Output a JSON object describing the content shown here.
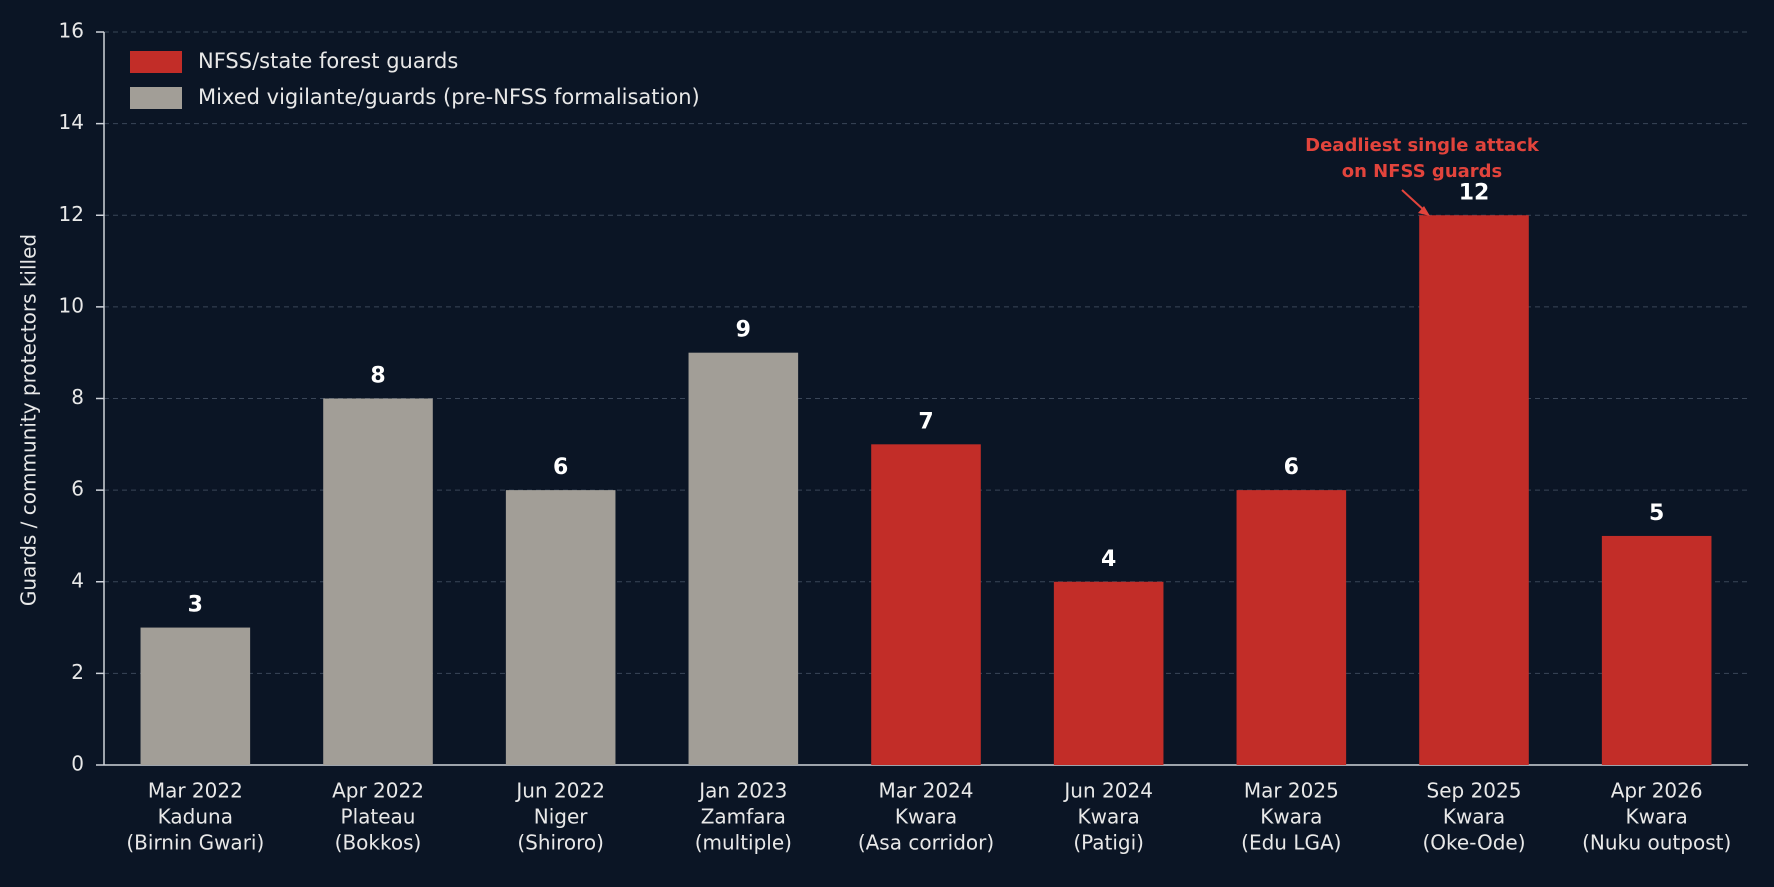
{
  "chart_data": {
    "type": "bar",
    "y_label": "Guards / community protectors killed",
    "categories": [
      [
        "Mar 2022",
        "Kaduna",
        "(Birnin Gwari)"
      ],
      [
        "Apr 2022",
        "Plateau",
        "(Bokkos)"
      ],
      [
        "Jun 2022",
        "Niger",
        "(Shiroro)"
      ],
      [
        "Jan 2023",
        "Zamfara",
        "(multiple)"
      ],
      [
        "Mar 2024",
        "Kwara",
        "(Asa corridor)"
      ],
      [
        "Jun 2024",
        "Kwara",
        "(Patigi)"
      ],
      [
        "Mar 2025",
        "Kwara",
        "(Edu LGA)"
      ],
      [
        "Sep 2025",
        "Kwara",
        "(Oke-Ode)"
      ],
      [
        "Apr 2026",
        "Kwara",
        "(Nuku outpost)"
      ]
    ],
    "series": [
      {
        "name": "NFSS/state forest guards",
        "color": "#c22d28",
        "values": [
          null,
          null,
          null,
          null,
          7,
          4,
          6,
          12,
          5
        ]
      },
      {
        "name": "Mixed vigilante/guards (pre-NFSS formalisation)",
        "color": "#a29e97",
        "values": [
          3,
          8,
          6,
          9,
          null,
          null,
          null,
          null,
          null
        ]
      }
    ],
    "annotation": [
      "Deadliest single attack",
      "on NFSS guards"
    ],
    "ylim": [
      0,
      16
    ],
    "yticks": [
      0,
      2,
      4,
      6,
      8,
      10,
      12,
      14,
      16
    ],
    "grid": true,
    "legend": "top-left"
  }
}
